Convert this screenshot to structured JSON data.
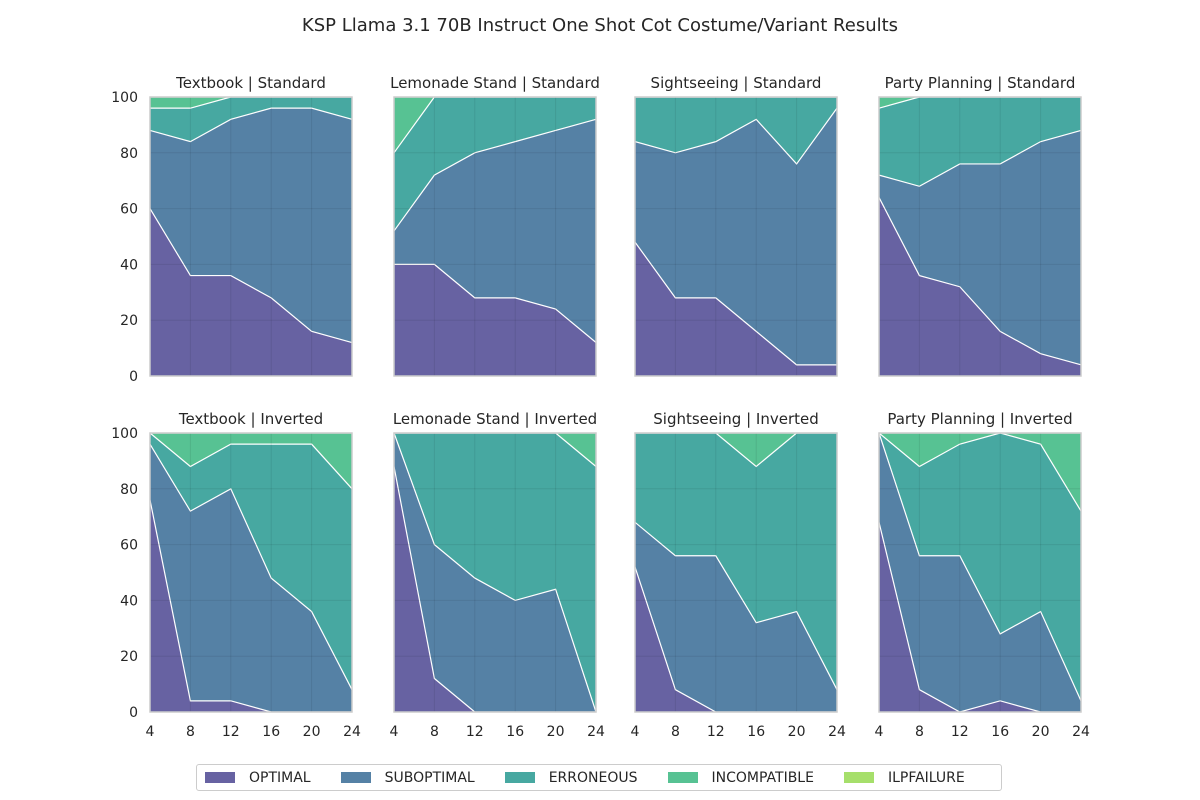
{
  "chart_data": {
    "type": "area",
    "stacked": true,
    "title": "KSP Llama 3.1 70B Instruct One Shot Cot Costume/Variant Results",
    "x": [
      4,
      8,
      12,
      16,
      20,
      24
    ],
    "xticks": [
      "4",
      "8",
      "12",
      "16",
      "20",
      "24"
    ],
    "ylim": [
      0,
      100
    ],
    "yticks": [
      "0",
      "20",
      "40",
      "60",
      "80",
      "100"
    ],
    "grid": true,
    "legend_position": "bottom-center",
    "legend": [
      "OPTIMAL",
      "SUBOPTIMAL",
      "ERRONEOUS",
      "INCOMPATIBLE",
      "ILPFAILURE"
    ],
    "colors": [
      "#463f8d",
      "#2f6591",
      "#1f958c",
      "#32b57b",
      "#93d84a"
    ],
    "panels": [
      {
        "title": "Textbook | Standard",
        "series": [
          {
            "name": "OPTIMAL",
            "values": [
              60,
              36,
              36,
              28,
              16,
              12
            ]
          },
          {
            "name": "SUBOPTIMAL",
            "values": [
              28,
              48,
              56,
              68,
              80,
              80
            ]
          },
          {
            "name": "ERRONEOUS",
            "values": [
              8,
              12,
              8,
              4,
              4,
              8
            ]
          },
          {
            "name": "INCOMPATIBLE",
            "values": [
              4,
              4,
              0,
              0,
              0,
              0
            ]
          },
          {
            "name": "ILPFAILURE",
            "values": [
              0,
              0,
              0,
              0,
              0,
              0
            ]
          }
        ]
      },
      {
        "title": "Lemonade Stand | Standard",
        "series": [
          {
            "name": "OPTIMAL",
            "values": [
              40,
              40,
              28,
              28,
              24,
              12
            ]
          },
          {
            "name": "SUBOPTIMAL",
            "values": [
              12,
              32,
              52,
              56,
              64,
              80
            ]
          },
          {
            "name": "ERRONEOUS",
            "values": [
              28,
              28,
              20,
              16,
              12,
              8
            ]
          },
          {
            "name": "INCOMPATIBLE",
            "values": [
              20,
              0,
              0,
              0,
              0,
              0
            ]
          },
          {
            "name": "ILPFAILURE",
            "values": [
              0,
              0,
              0,
              0,
              0,
              0
            ]
          }
        ]
      },
      {
        "title": "Sightseeing | Standard",
        "series": [
          {
            "name": "OPTIMAL",
            "values": [
              48,
              28,
              28,
              16,
              4,
              4
            ]
          },
          {
            "name": "SUBOPTIMAL",
            "values": [
              36,
              52,
              56,
              76,
              72,
              92
            ]
          },
          {
            "name": "ERRONEOUS",
            "values": [
              16,
              20,
              16,
              8,
              24,
              4
            ]
          },
          {
            "name": "INCOMPATIBLE",
            "values": [
              0,
              0,
              0,
              0,
              0,
              0
            ]
          },
          {
            "name": "ILPFAILURE",
            "values": [
              0,
              0,
              0,
              0,
              0,
              0
            ]
          }
        ]
      },
      {
        "title": "Party Planning | Standard",
        "series": [
          {
            "name": "OPTIMAL",
            "values": [
              64,
              36,
              32,
              16,
              8,
              4
            ]
          },
          {
            "name": "SUBOPTIMAL",
            "values": [
              8,
              32,
              44,
              60,
              76,
              84
            ]
          },
          {
            "name": "ERRONEOUS",
            "values": [
              24,
              32,
              24,
              24,
              16,
              12
            ]
          },
          {
            "name": "INCOMPATIBLE",
            "values": [
              4,
              0,
              0,
              0,
              0,
              0
            ]
          },
          {
            "name": "ILPFAILURE",
            "values": [
              0,
              0,
              0,
              0,
              0,
              0
            ]
          }
        ]
      },
      {
        "title": "Textbook | Inverted",
        "series": [
          {
            "name": "OPTIMAL",
            "values": [
              76,
              4,
              4,
              0,
              0,
              0
            ]
          },
          {
            "name": "SUBOPTIMAL",
            "values": [
              20,
              68,
              76,
              48,
              36,
              8
            ]
          },
          {
            "name": "ERRONEOUS",
            "values": [
              4,
              16,
              16,
              48,
              60,
              72
            ]
          },
          {
            "name": "INCOMPATIBLE",
            "values": [
              0,
              12,
              4,
              4,
              4,
              20
            ]
          },
          {
            "name": "ILPFAILURE",
            "values": [
              0,
              0,
              0,
              0,
              0,
              0
            ]
          }
        ]
      },
      {
        "title": "Lemonade Stand | Inverted",
        "series": [
          {
            "name": "OPTIMAL",
            "values": [
              88,
              12,
              0,
              0,
              0,
              0
            ]
          },
          {
            "name": "SUBOPTIMAL",
            "values": [
              12,
              48,
              48,
              40,
              44,
              0
            ]
          },
          {
            "name": "ERRONEOUS",
            "values": [
              0,
              40,
              52,
              60,
              56,
              88
            ]
          },
          {
            "name": "INCOMPATIBLE",
            "values": [
              0,
              0,
              0,
              0,
              0,
              12
            ]
          },
          {
            "name": "ILPFAILURE",
            "values": [
              0,
              0,
              0,
              0,
              0,
              0
            ]
          }
        ]
      },
      {
        "title": "Sightseeing | Inverted",
        "series": [
          {
            "name": "OPTIMAL",
            "values": [
              52,
              8,
              0,
              0,
              0,
              0
            ]
          },
          {
            "name": "SUBOPTIMAL",
            "values": [
              16,
              48,
              56,
              32,
              36,
              8
            ]
          },
          {
            "name": "ERRONEOUS",
            "values": [
              32,
              44,
              44,
              56,
              64,
              92
            ]
          },
          {
            "name": "INCOMPATIBLE",
            "values": [
              0,
              0,
              0,
              12,
              0,
              0
            ]
          },
          {
            "name": "ILPFAILURE",
            "values": [
              0,
              0,
              0,
              0,
              0,
              0
            ]
          }
        ]
      },
      {
        "title": "Party Planning | Inverted",
        "series": [
          {
            "name": "OPTIMAL",
            "values": [
              68,
              8,
              0,
              4,
              0,
              0
            ]
          },
          {
            "name": "SUBOPTIMAL",
            "values": [
              32,
              48,
              56,
              24,
              36,
              4
            ]
          },
          {
            "name": "ERRONEOUS",
            "values": [
              0,
              32,
              40,
              72,
              60,
              68
            ]
          },
          {
            "name": "INCOMPATIBLE",
            "values": [
              0,
              12,
              4,
              0,
              4,
              28
            ]
          },
          {
            "name": "ILPFAILURE",
            "values": [
              0,
              0,
              0,
              0,
              0,
              0
            ]
          }
        ]
      }
    ]
  }
}
